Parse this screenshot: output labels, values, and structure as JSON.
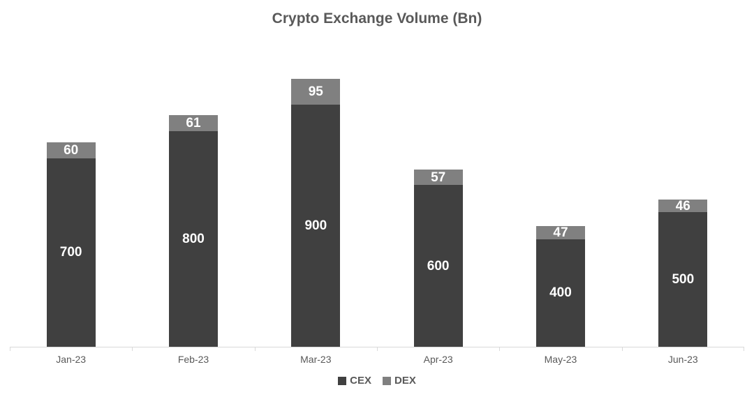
{
  "title": "Crypto Exchange Volume (Bn)",
  "colors": {
    "cex": "#404040",
    "dex": "#808080",
    "axis_line": "#d9d9d9",
    "axis_text": "#595959",
    "title_text": "#595959",
    "bar_label_text": "#ffffff",
    "background": "#ffffff"
  },
  "legend": [
    {
      "label": "CEX",
      "color": "#404040"
    },
    {
      "label": "DEX",
      "color": "#808080"
    }
  ],
  "chart_data": {
    "type": "bar",
    "stacked": true,
    "title": "Crypto Exchange Volume (Bn)",
    "categories": [
      "Jan-23",
      "Feb-23",
      "Mar-23",
      "Apr-23",
      "May-23",
      "Jun-23"
    ],
    "series": [
      {
        "name": "CEX",
        "color": "#404040",
        "values": [
          700,
          800,
          900,
          600,
          400,
          500
        ]
      },
      {
        "name": "DEX",
        "color": "#808080",
        "values": [
          60,
          61,
          95,
          57,
          47,
          46
        ]
      }
    ],
    "xlabel": "",
    "ylabel": "",
    "ylim": [
      0,
      1000
    ],
    "grid": false,
    "y_axis_visible": false,
    "data_labels": true,
    "legend_position": "bottom"
  }
}
